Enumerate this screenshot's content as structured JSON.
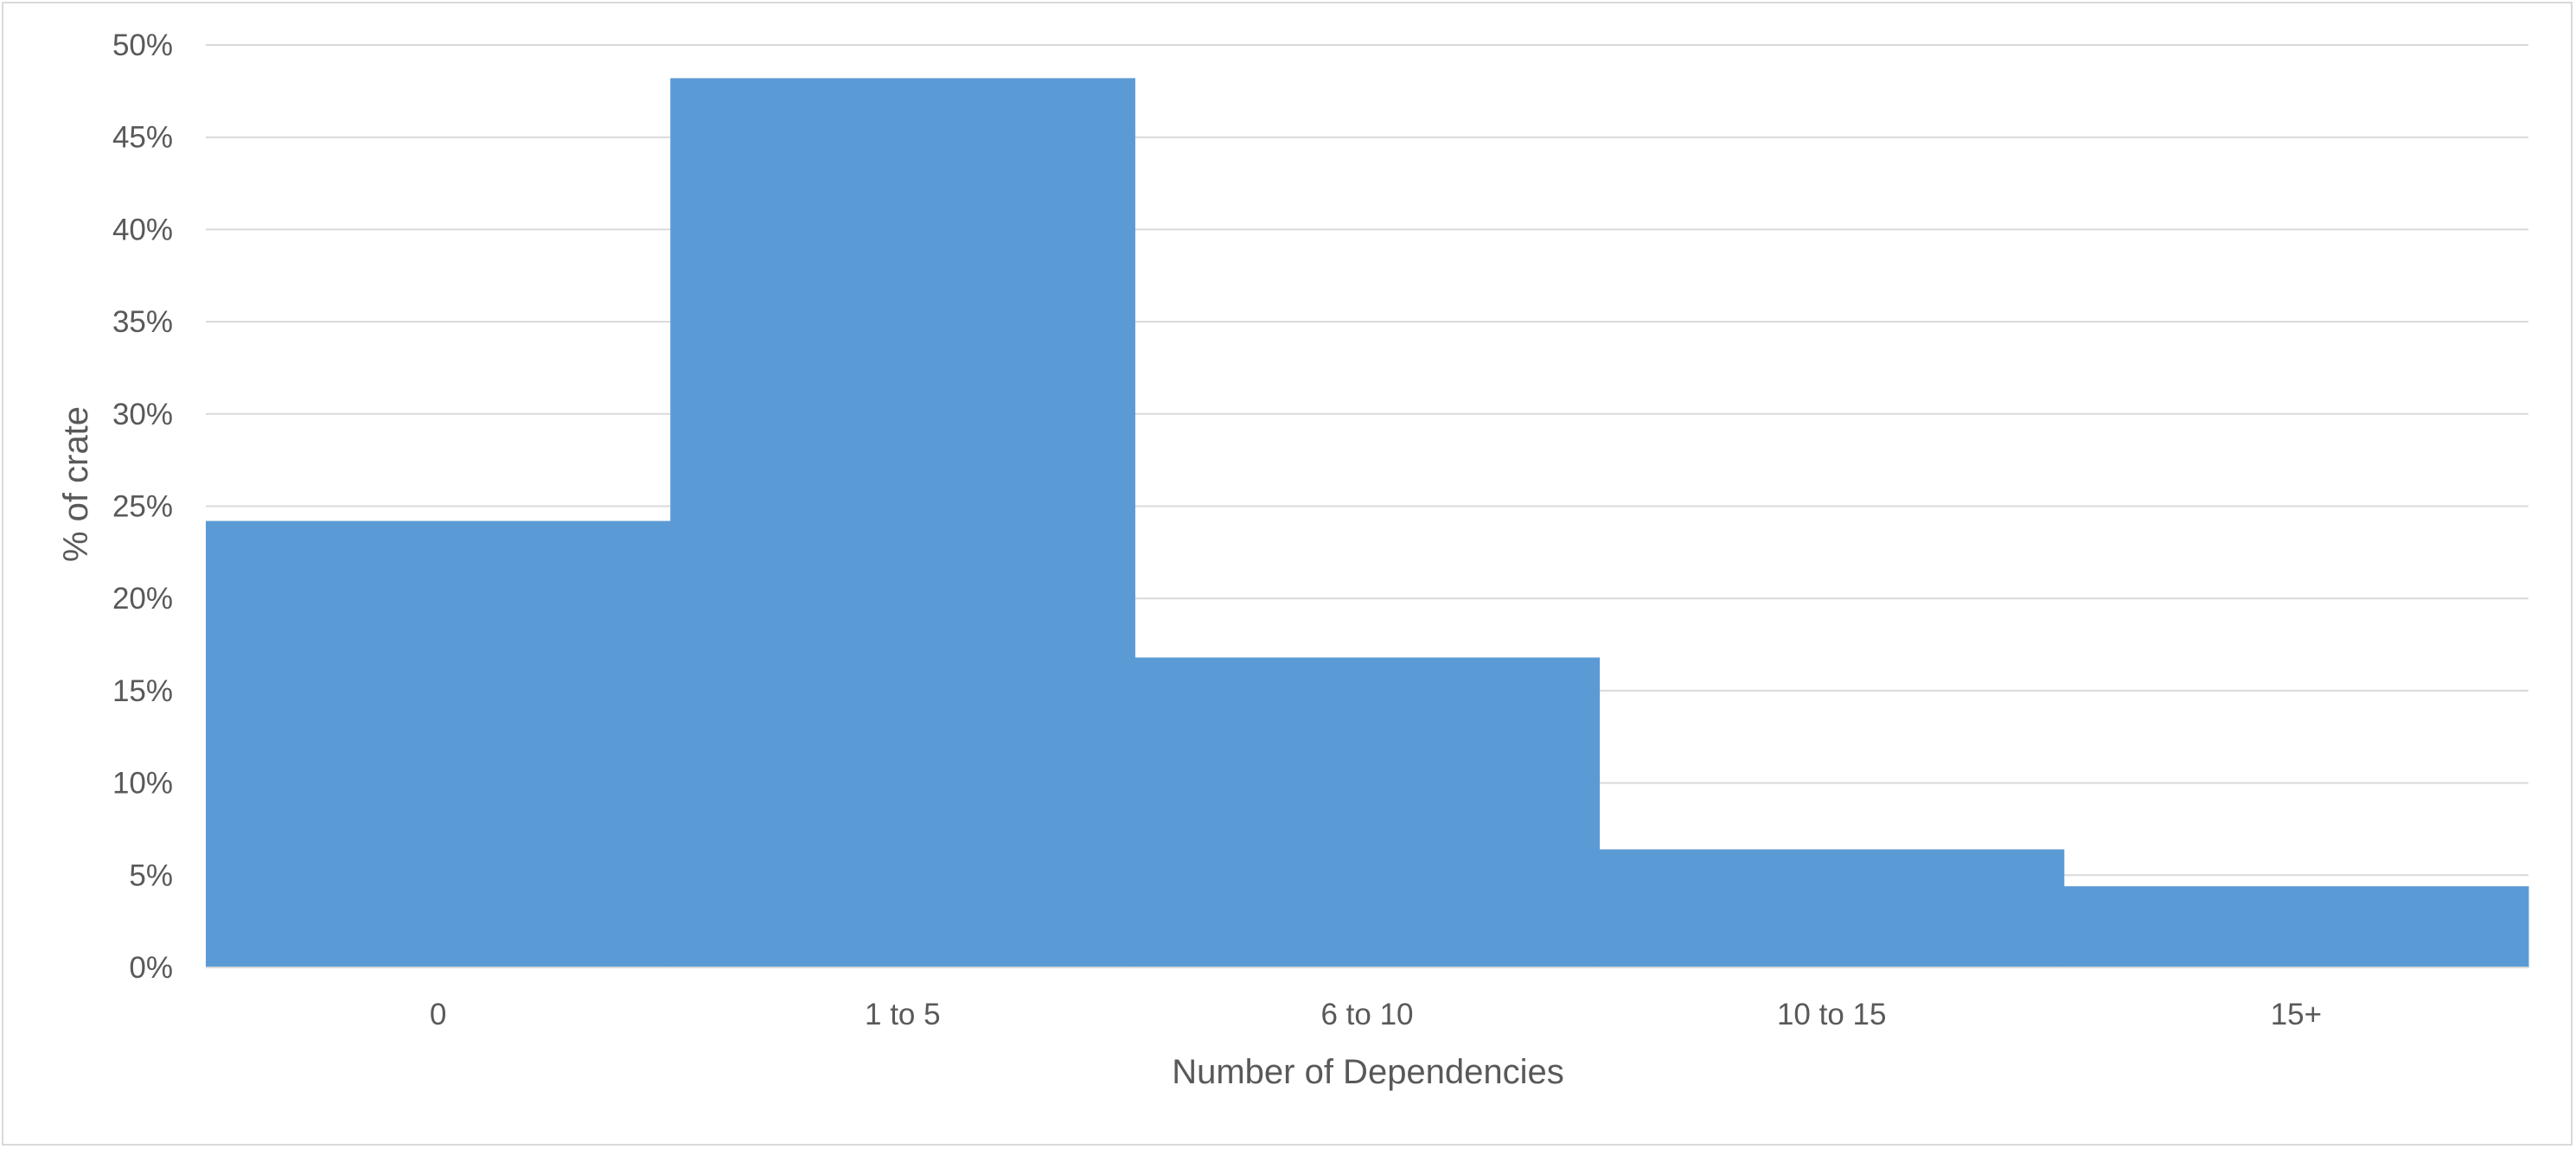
{
  "chart_data": {
    "type": "bar",
    "title": "",
    "xlabel": "Number of Dependencies",
    "ylabel": "% of crate",
    "categories": [
      "0",
      "1 to 5",
      "6 to 10",
      "10 to 15",
      "15+"
    ],
    "values": [
      24.2,
      48.2,
      16.8,
      6.4,
      4.4
    ],
    "ylim": [
      0,
      50
    ],
    "yticks": [
      "0%",
      "5%",
      "10%",
      "15%",
      "20%",
      "25%",
      "30%",
      "35%",
      "40%",
      "45%",
      "50%"
    ],
    "grid": true,
    "legend": "none",
    "bar_color": "#5b9bd5",
    "gridline_color": "#d9d9d9"
  }
}
